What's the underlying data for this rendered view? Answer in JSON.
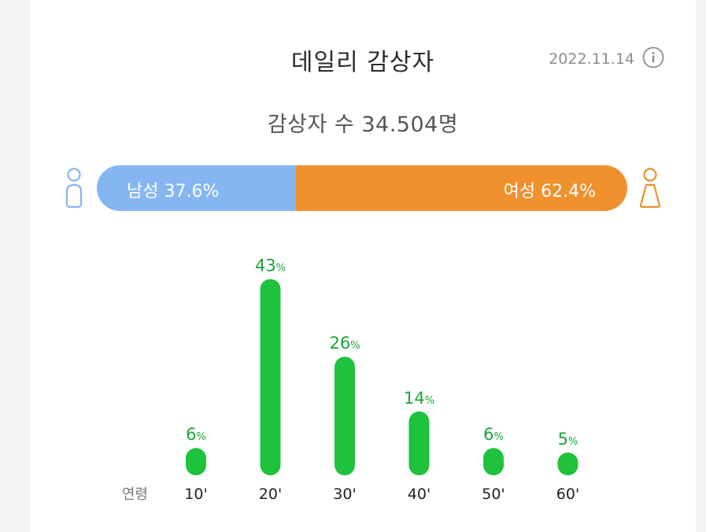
{
  "header": {
    "title": "데일리 감상자",
    "date": "2022.11.14"
  },
  "summary": {
    "viewers_text": "감상자 수 34.504명"
  },
  "gender": {
    "male_label": "남성 37.6%",
    "female_label": "여성 62.4%",
    "male_share": 37.6,
    "female_share": 62.4,
    "male_color": "#86b6f2",
    "female_color": "#f0912e"
  },
  "icons": {
    "info": "info-circle-icon",
    "male": "male-person-icon",
    "female": "female-person-icon"
  },
  "chart_data": {
    "type": "bar",
    "row_label": "연령",
    "categories": [
      "10'",
      "20'",
      "30'",
      "40'",
      "50'",
      "60'"
    ],
    "values": [
      6,
      43,
      26,
      14,
      6,
      5
    ],
    "unit": "%",
    "bar_color": "#1fc23c",
    "label_color": "#1aa53a"
  }
}
